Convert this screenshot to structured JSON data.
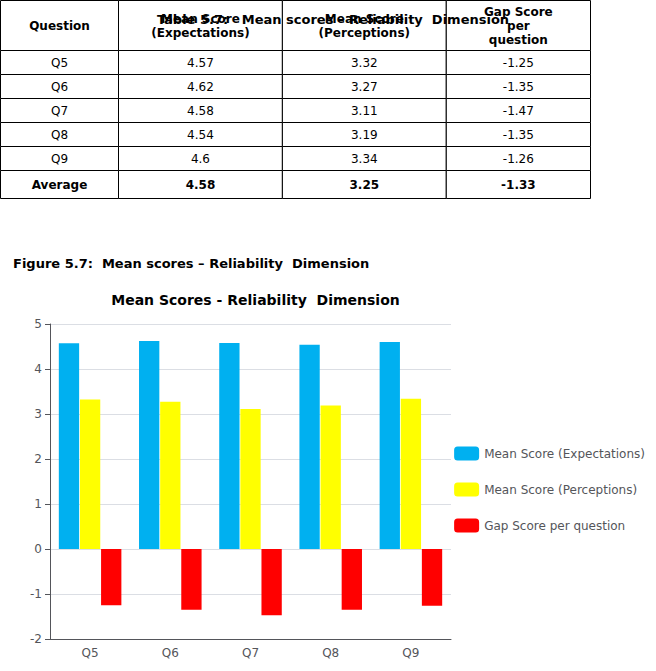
{
  "table": {
    "title": "Table 5.7:   Mean scores – Reliability  Dimension",
    "columns": [
      "Question",
      "Mean Score\n(Expectations)",
      "Mean Score\n(Perceptions)",
      "Gap Score\nper\nquestion"
    ],
    "rows": [
      [
        "Q5",
        "4.57",
        "3.32",
        "-1.25"
      ],
      [
        "Q6",
        "4.62",
        "3.27",
        "-1.35"
      ],
      [
        "Q7",
        "4.58",
        "3.11",
        "-1.47"
      ],
      [
        "Q8",
        "4.54",
        "3.19",
        "-1.35"
      ],
      [
        "Q9",
        "4.6",
        "3.34",
        "-1.26"
      ],
      [
        "Average",
        "4.58",
        "3.25",
        "-1.33"
      ]
    ]
  },
  "chart_data": {
    "type": "bar",
    "title": "Mean Scores - Reliability  Dimension",
    "annotations": [
      "Figure 5.7:  Mean scores – Reliability  Dimension"
    ],
    "categories": [
      "Q5",
      "Q6",
      "Q7",
      "Q8",
      "Q9"
    ],
    "series": [
      {
        "name": "Mean Score (Expectations)",
        "color": "#00B0F0",
        "values": [
          4.57,
          4.62,
          4.58,
          4.54,
          4.6
        ]
      },
      {
        "name": "Mean Score (Perceptions)",
        "color": "#FFFF00",
        "values": [
          3.32,
          3.27,
          3.11,
          3.19,
          3.34
        ]
      },
      {
        "name": "Gap Score per question",
        "color": "#FF0000",
        "values": [
          -1.25,
          -1.35,
          -1.47,
          -1.35,
          -1.26
        ]
      }
    ],
    "ylim": [
      -2,
      5
    ],
    "yticks": [
      -2,
      -1,
      0,
      1,
      2,
      3,
      4,
      5
    ],
    "grid": true,
    "legend": "right"
  }
}
